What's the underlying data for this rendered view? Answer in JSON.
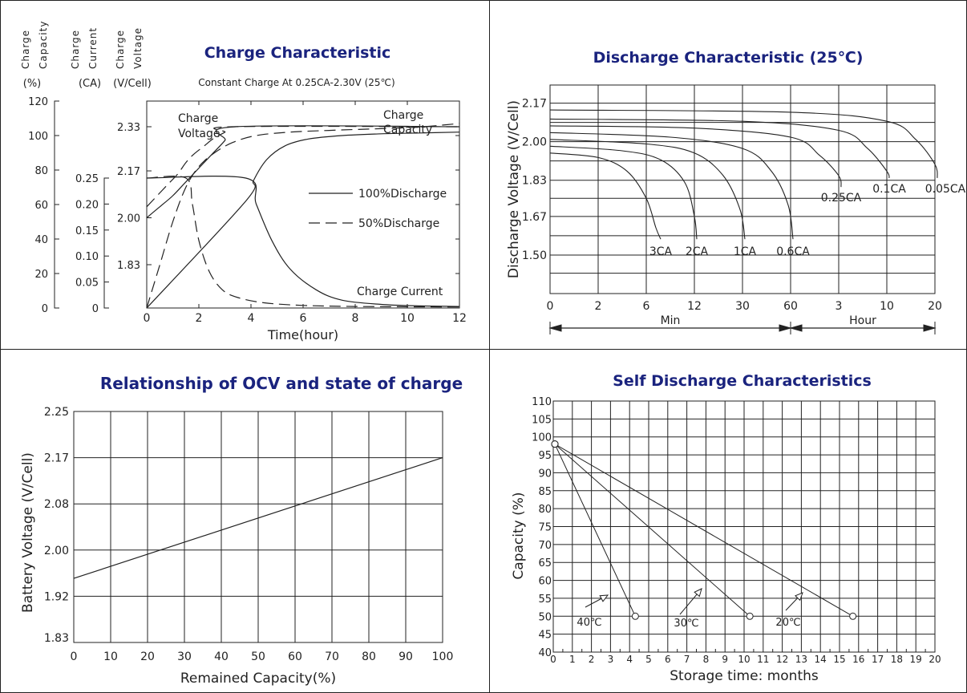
{
  "chart_data": [
    {
      "id": "charge",
      "type": "line",
      "title": "Charge Characteristic",
      "subtitle": "Constant Charge At 0.25CA-2.30V  (25℃)",
      "xlabel": "Time(hour)",
      "xlim": [
        0,
        12
      ],
      "x_ticks": [
        "0",
        "2",
        "4",
        "6",
        "8",
        "10",
        "12"
      ],
      "y_axes": [
        {
          "label_lines": [
            "Charge",
            "Capacity"
          ],
          "unit": "(%)",
          "ticks": [
            "0",
            "20",
            "40",
            "60",
            "80",
            "100",
            "120"
          ],
          "ylim": [
            0,
            120
          ]
        },
        {
          "label_lines": [
            "Charge",
            "Current"
          ],
          "unit": "(CA)",
          "ticks": [
            "0",
            "0.05",
            "0.10",
            "0.15",
            "0.20",
            "0.25"
          ],
          "ylim": [
            0,
            0.25
          ]
        },
        {
          "label_lines": [
            "Charge",
            "Voltage"
          ],
          "unit": "(V/Cell)",
          "ticks": [
            "1.83",
            "2.00",
            "2.17",
            "2.33"
          ],
          "ylim": [
            1.83,
            2.33
          ]
        }
      ],
      "legend": [
        {
          "label": "100%Discharge",
          "style": "solid"
        },
        {
          "label": "50%Discharge",
          "style": "dashed"
        }
      ],
      "annotations": {
        "charge_voltage": [
          "Charge",
          "Voltage"
        ],
        "charge_capacity": [
          "Charge",
          "Capacity"
        ],
        "charge_current": "Charge Current"
      },
      "series": [
        {
          "curve": "voltage",
          "discharge": "100%",
          "style": "solid",
          "axis": "V",
          "x": [
            0,
            0.5,
            1,
            1.5,
            2,
            2.5,
            3,
            3.4,
            12
          ],
          "y": [
            2.0,
            2.04,
            2.08,
            2.13,
            2.18,
            2.23,
            2.28,
            2.33,
            2.33
          ]
        },
        {
          "curve": "voltage",
          "discharge": "50%",
          "style": "dashed",
          "axis": "V",
          "x": [
            0,
            0.4,
            0.8,
            1.2,
            1.5,
            1.8,
            2.2,
            2.6,
            3.0,
            3.3,
            12
          ],
          "y": [
            2.04,
            2.08,
            2.12,
            2.16,
            2.2,
            2.23,
            2.26,
            2.29,
            2.31,
            2.33,
            2.33
          ]
        },
        {
          "curve": "current",
          "discharge": "100%",
          "style": "solid",
          "axis": "CA",
          "x": [
            0,
            3.8,
            4.2,
            4.8,
            5.5,
            6.5,
            7.5,
            9,
            10.5,
            12
          ],
          "y": [
            0.25,
            0.25,
            0.2,
            0.13,
            0.075,
            0.035,
            0.015,
            0.007,
            0.004,
            0.003
          ]
        },
        {
          "curve": "current",
          "discharge": "50%",
          "style": "dashed",
          "axis": "CA",
          "x": [
            0,
            1.5,
            1.75,
            2.0,
            2.4,
            2.9,
            3.5,
            4.5,
            6,
            8,
            12
          ],
          "y": [
            0.25,
            0.25,
            0.2,
            0.13,
            0.07,
            0.035,
            0.02,
            0.01,
            0.005,
            0.003,
            0.002
          ]
        },
        {
          "curve": "capacity",
          "discharge": "100%",
          "style": "solid",
          "axis": "%",
          "x": [
            0,
            3.8,
            4.1,
            4.6,
            5.3,
            6.2,
            7.5,
            9,
            10.5,
            12
          ],
          "y": [
            0,
            62,
            74,
            86,
            94,
            98,
            100,
            101,
            101.5,
            102
          ]
        },
        {
          "curve": "capacity",
          "discharge": "50%",
          "style": "dashed",
          "axis": "%",
          "x": [
            0,
            0.5,
            1,
            1.5,
            2,
            2.6,
            3.3,
            4.2,
            5.5,
            7,
            9,
            10.5,
            12
          ],
          "y": [
            0,
            25,
            50,
            70,
            82,
            90,
            96,
            100,
            102,
            103,
            104,
            105,
            107
          ]
        }
      ]
    },
    {
      "id": "discharge",
      "type": "line",
      "title": "Discharge Characteristic  (25℃)",
      "ylabel": "Discharge Voltage (V/Cell)",
      "y_ticks": [
        "1.50",
        "1.67",
        "1.83",
        "2.00",
        "2.17"
      ],
      "ylim": [
        1.33,
        2.25
      ],
      "x_ticks": [
        "0",
        "2",
        "6",
        "12",
        "30",
        "60",
        "3",
        "10",
        "20"
      ],
      "x_groups": [
        {
          "label": "Min"
        },
        {
          "label": "Hour"
        }
      ],
      "note": "x positions use tick index: 0=0min,1=2min,2=6min,3=12min,4=30min,5=60min,6=3h,7=10h,8=20h",
      "series": [
        {
          "name": "3CA",
          "x": [
            0,
            1,
            1.6,
            2.0,
            2.2,
            2.3
          ],
          "y": [
            1.95,
            1.93,
            1.87,
            1.75,
            1.62,
            1.57
          ]
        },
        {
          "name": "2CA",
          "x": [
            0,
            1.5,
            2.3,
            2.8,
            3.0,
            3.05
          ],
          "y": [
            1.98,
            1.96,
            1.92,
            1.82,
            1.67,
            1.57
          ]
        },
        {
          "name": "1CA",
          "x": [
            0,
            2,
            3,
            3.6,
            3.95,
            4.05
          ],
          "y": [
            2.01,
            1.99,
            1.95,
            1.85,
            1.7,
            1.57
          ]
        },
        {
          "name": "0.6CA",
          "x": [
            0,
            2.5,
            4,
            4.6,
            4.95,
            5.05
          ],
          "y": [
            2.04,
            2.02,
            1.97,
            1.87,
            1.72,
            1.57
          ]
        },
        {
          "name": "0.25CA",
          "x": [
            0,
            3,
            5,
            5.6,
            6.0,
            6.05
          ],
          "y": [
            2.07,
            2.06,
            2.02,
            1.94,
            1.85,
            1.8
          ]
        },
        {
          "name": "0.1CA",
          "x": [
            0,
            4,
            6,
            6.6,
            7.0,
            7.05
          ],
          "y": [
            2.1,
            2.09,
            2.05,
            1.97,
            1.87,
            1.84
          ]
        },
        {
          "name": "0.05CA",
          "x": [
            0,
            5,
            7,
            7.6,
            8.0,
            8.05
          ],
          "y": [
            2.14,
            2.13,
            2.09,
            2.01,
            1.9,
            1.84
          ]
        }
      ]
    },
    {
      "id": "ocv",
      "type": "line",
      "title": "Relationship of OCV and state of charge",
      "xlabel": "Remained Capacity(%)",
      "ylabel": "Battery Voltage (V/Cell)",
      "x_ticks": [
        "0",
        "10",
        "20",
        "30",
        "40",
        "50",
        "60",
        "70",
        "80",
        "90",
        "100"
      ],
      "y_ticks": [
        "1.83",
        "1.92",
        "2.00",
        "2.08",
        "2.17",
        "2.25"
      ],
      "xlim": [
        0,
        100
      ],
      "ylim": [
        1.83,
        2.25
      ],
      "series": [
        {
          "x": [
            0,
            100
          ],
          "y": [
            1.951,
            2.17
          ]
        }
      ]
    },
    {
      "id": "self",
      "type": "line",
      "title": "Self Discharge Characteristics",
      "xlabel": "Storage time: months",
      "ylabel": "Capacity (%)",
      "x_ticks": [
        "0",
        "1",
        "2",
        "3",
        "4",
        "5",
        "6",
        "7",
        "8",
        "9",
        "10",
        "11",
        "12",
        "13",
        "14",
        "15",
        "16",
        "17",
        "18",
        "19",
        "20"
      ],
      "y_ticks": [
        "40",
        "45",
        "50",
        "55",
        "60",
        "65",
        "70",
        "75",
        "80",
        "85",
        "90",
        "95",
        "100",
        "105",
        "110"
      ],
      "xlim": [
        0,
        20
      ],
      "ylim": [
        40,
        110
      ],
      "series": [
        {
          "name": "40℃",
          "x": [
            0,
            4.3
          ],
          "y": [
            98,
            50
          ]
        },
        {
          "name": "30℃",
          "x": [
            0,
            10.3
          ],
          "y": [
            98,
            50
          ]
        },
        {
          "name": "20℃",
          "x": [
            0,
            15.7
          ],
          "y": [
            98,
            50
          ]
        }
      ]
    }
  ]
}
